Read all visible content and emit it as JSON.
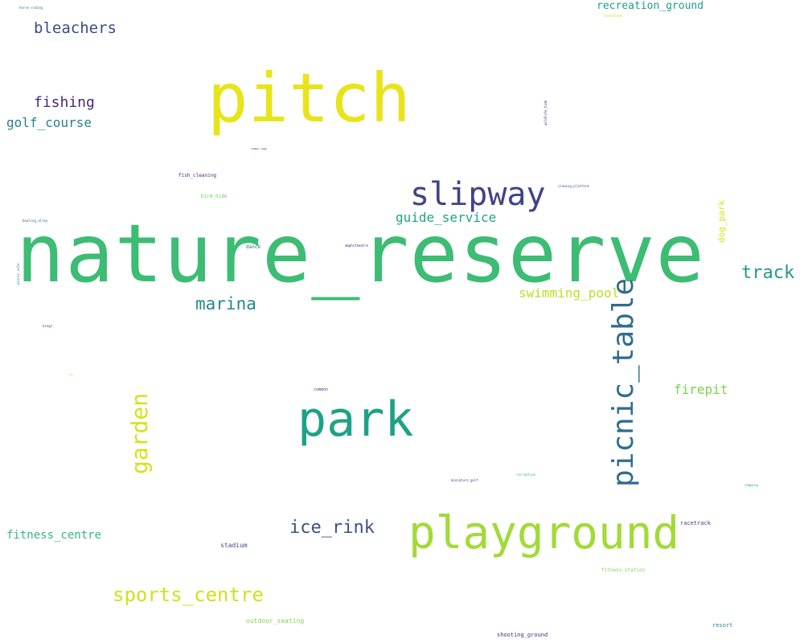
{
  "words": [
    {
      "text": "nature_reserve",
      "color": "#3dbc74"
    },
    {
      "text": "pitch",
      "color": "#e8e41a"
    },
    {
      "text": "playground",
      "color": "#a2da37"
    },
    {
      "text": "park",
      "color": "#1fa187"
    },
    {
      "text": "slipway",
      "color": "#404387"
    },
    {
      "text": "picnic_table",
      "color": "#2f6c8e"
    },
    {
      "text": "garden",
      "color": "#d5e21a"
    },
    {
      "text": "sports_centre",
      "color": "#d0e11c"
    },
    {
      "text": "ice_rink",
      "color": "#3b518b"
    },
    {
      "text": "marina",
      "color": "#24868e"
    },
    {
      "text": "track",
      "color": "#1f9a8a"
    },
    {
      "text": "bleachers",
      "color": "#3e4989"
    },
    {
      "text": "fishing",
      "color": "#472878"
    },
    {
      "text": "golf_course",
      "color": "#277f8e"
    },
    {
      "text": "guide_service",
      "color": "#20a486"
    },
    {
      "text": "swimming_pool",
      "color": "#bddf26"
    },
    {
      "text": "recreation_ground",
      "color": "#1f9e89"
    },
    {
      "text": "firepit",
      "color": "#7ad151"
    },
    {
      "text": "fitness_centre",
      "color": "#35b779"
    },
    {
      "text": "dog_park",
      "color": "#d8e219"
    },
    {
      "text": "stadium",
      "color": "#3e4a89"
    },
    {
      "text": "outdoor_seating",
      "color": "#7fd34e"
    },
    {
      "text": "shooting_ground",
      "color": "#46307e"
    },
    {
      "text": "resort",
      "color": "#25848e"
    },
    {
      "text": "racetrack",
      "color": "#453882"
    },
    {
      "text": "fitness_station",
      "color": "#84d44b"
    },
    {
      "text": "fish_cleaning",
      "color": "#482475"
    },
    {
      "text": "bird_hide",
      "color": "#6ccd5a"
    },
    {
      "text": "dance",
      "color": "#31688e"
    },
    {
      "text": "amphitheatre",
      "color": "#482173"
    },
    {
      "text": "common",
      "color": "#414487"
    },
    {
      "text": "miniature_golf",
      "color": "#443983"
    },
    {
      "text": "recreation",
      "color": "#2db27d"
    },
    {
      "text": "summer_camp",
      "color": "#440154"
    },
    {
      "text": "camping",
      "color": "#29af7f"
    },
    {
      "text": "viewing_platform",
      "color": "#3b528b"
    },
    {
      "text": "wildlife_hide",
      "color": "#482979"
    },
    {
      "text": "bowling_alley",
      "color": "#33638d"
    },
    {
      "text": "picnic_site",
      "color": "#2c728e"
    },
    {
      "text": "horse_riding",
      "color": "#2a778e"
    },
    {
      "text": "bandstand",
      "color": "#dde318"
    },
    {
      "text": "kiosk",
      "color": "#b5de2b"
    },
    {
      "text": "bbq",
      "color": "#c2df23"
    },
    {
      "text": "kings",
      "color": "#3f4788"
    }
  ]
}
